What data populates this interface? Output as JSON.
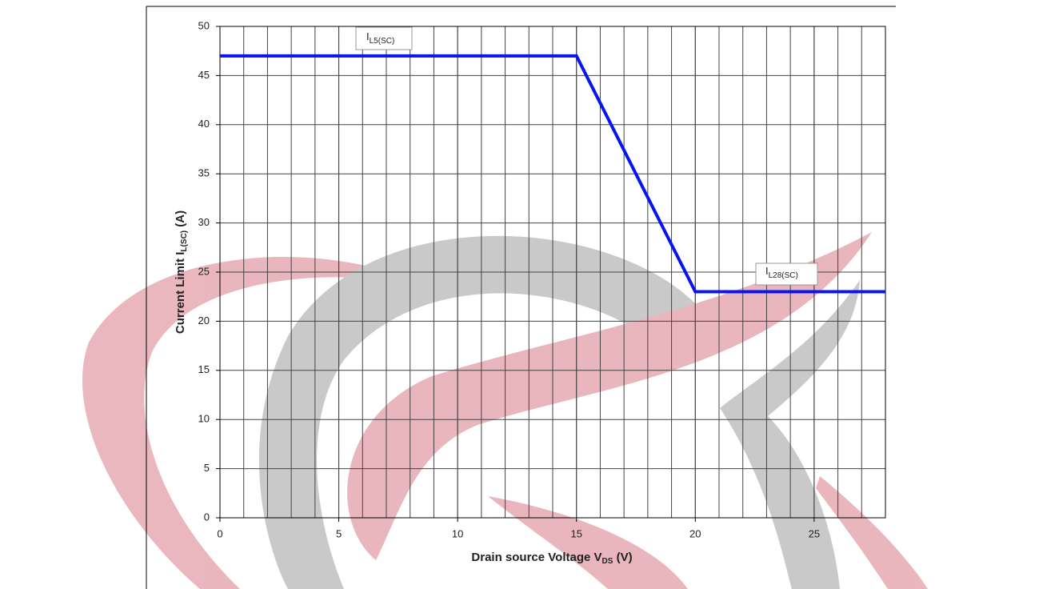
{
  "chart_data": {
    "type": "line",
    "x_label": {
      "text": "Drain source Voltage V",
      "sub": "DS",
      "tail": " (V)"
    },
    "y_label": {
      "text": "Current Limit I",
      "sub": "L(SC)",
      "tail": " (A)"
    },
    "annotations": [
      {
        "text": "I",
        "sub": "L5(SC)"
      },
      {
        "text": "I",
        "sub": "L28(SC)"
      }
    ],
    "series": [
      {
        "color": "#0a14f0",
        "x": [
          0,
          15,
          20,
          28
        ],
        "values": [
          47,
          47,
          23,
          23
        ]
      }
    ],
    "xlim": [
      0,
      28
    ],
    "xticks": [
      0,
      5,
      10,
      15,
      20,
      25
    ],
    "ylim": [
      0,
      50
    ],
    "yticks": [
      0,
      5,
      10,
      15,
      20,
      25,
      30,
      35,
      40,
      45,
      50
    ],
    "grid": true
  }
}
